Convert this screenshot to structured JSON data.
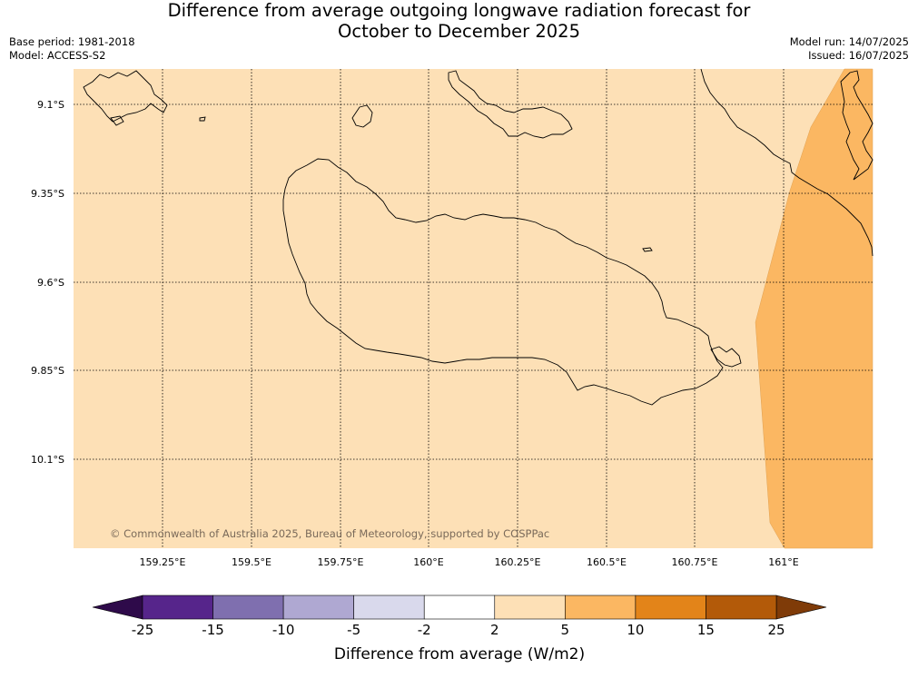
{
  "title": {
    "line1": "Difference from average outgoing longwave radiation forecast for",
    "line2": "October to December 2025"
  },
  "meta_left": {
    "base_period": "Base period: 1981-2018",
    "model": "Model: ACCESS-S2"
  },
  "meta_right": {
    "model_run": "Model run: 14/07/2025",
    "issued": "Issued: 16/07/2025"
  },
  "map": {
    "lon_ticks": [
      "159.25°E",
      "159.5°E",
      "159.75°E",
      "160°E",
      "160.25°E",
      "160.5°E",
      "160.75°E",
      "161°E"
    ],
    "lat_ticks": [
      "9.1°S",
      "9.35°S",
      "9.6°S",
      "9.85°S",
      "10.1°S"
    ],
    "copyright": "© Commonwealth of Australia 2025, Bureau of Meteorology, supported by COSPPac",
    "background_category": "2 to 5",
    "highlight_category": "5 to 10"
  },
  "colorbar": {
    "label": "Difference from average (W/m2)",
    "ticks": [
      "-25",
      "-15",
      "-10",
      "-5",
      "-2",
      "2",
      "5",
      "10",
      "15",
      "25"
    ],
    "colors": [
      "#56258b",
      "#7f6faf",
      "#afa8d2",
      "#d9d9ec",
      "#ffffff",
      "#fde0b6",
      "#fbb762",
      "#e38419",
      "#b35a09"
    ],
    "under_color": "#2e0a4a",
    "over_color": "#7f3b08"
  }
}
